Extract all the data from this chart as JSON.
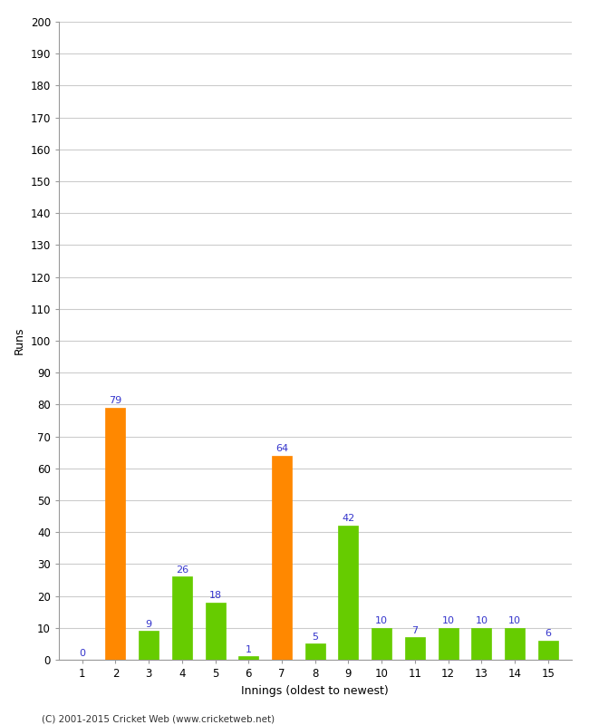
{
  "innings": [
    1,
    2,
    3,
    4,
    5,
    6,
    7,
    8,
    9,
    10,
    11,
    12,
    13,
    14,
    15
  ],
  "runs": [
    0,
    79,
    9,
    26,
    18,
    1,
    64,
    5,
    42,
    10,
    7,
    10,
    10,
    10,
    6
  ],
  "colors": [
    "#66cc00",
    "#ff8800",
    "#66cc00",
    "#66cc00",
    "#66cc00",
    "#66cc00",
    "#ff8800",
    "#66cc00",
    "#66cc00",
    "#66cc00",
    "#66cc00",
    "#66cc00",
    "#66cc00",
    "#66cc00",
    "#66cc00"
  ],
  "xlabel": "Innings (oldest to newest)",
  "ylabel": "Runs",
  "ylim": [
    0,
    200
  ],
  "yticks": [
    0,
    10,
    20,
    30,
    40,
    50,
    60,
    70,
    80,
    90,
    100,
    110,
    120,
    130,
    140,
    150,
    160,
    170,
    180,
    190,
    200
  ],
  "footer": "(C) 2001-2015 Cricket Web (www.cricketweb.net)",
  "label_color": "#3333cc",
  "background_color": "#ffffff",
  "grid_color": "#cccccc",
  "bar_width": 0.6
}
